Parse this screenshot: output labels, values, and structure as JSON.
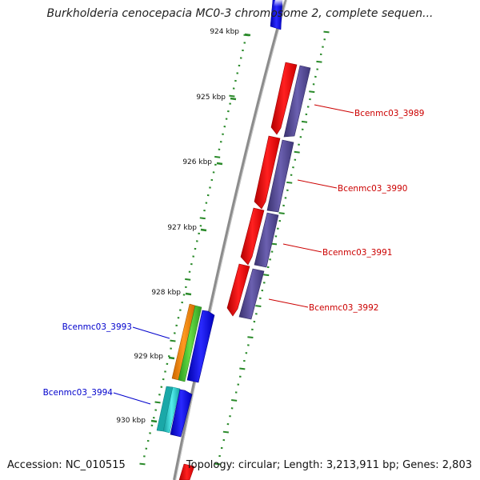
{
  "title": "Burkholderia cenocepacia MC0-3 chromosome 2, complete sequen...",
  "footer": {
    "accession": "Accession: NC_010515",
    "summary": "Topology: circular; Length: 3,213,911 bp; Genes: 2,803"
  },
  "ticks": [
    {
      "label": "924 kbp"
    },
    {
      "label": "925 kbp"
    },
    {
      "label": "926 kbp"
    },
    {
      "label": "927 kbp"
    },
    {
      "label": "928 kbp"
    },
    {
      "label": "929 kbp"
    },
    {
      "label": "930 kbp"
    }
  ],
  "genes_right": [
    {
      "name": "Bcenmc03_3989"
    },
    {
      "name": "Bcenmc03_3990"
    },
    {
      "name": "Bcenmc03_3991"
    },
    {
      "name": "Bcenmc03_3992"
    }
  ],
  "genes_left": [
    {
      "name": "Bcenmc03_3993"
    },
    {
      "name": "Bcenmc03_3994"
    }
  ],
  "colors": {
    "backbone": "#8c8c8c",
    "tick": "#2a8a2a",
    "label_right": "#cc0000",
    "label_left": "#0000cc",
    "cds_red": "#ff1a1a",
    "cds_purple": "#5a4f9c",
    "cds_blue": "#1010ee",
    "cds_orange": "#ff8c00",
    "cds_green": "#44cc33",
    "cds_cyan": "#22cccc"
  }
}
